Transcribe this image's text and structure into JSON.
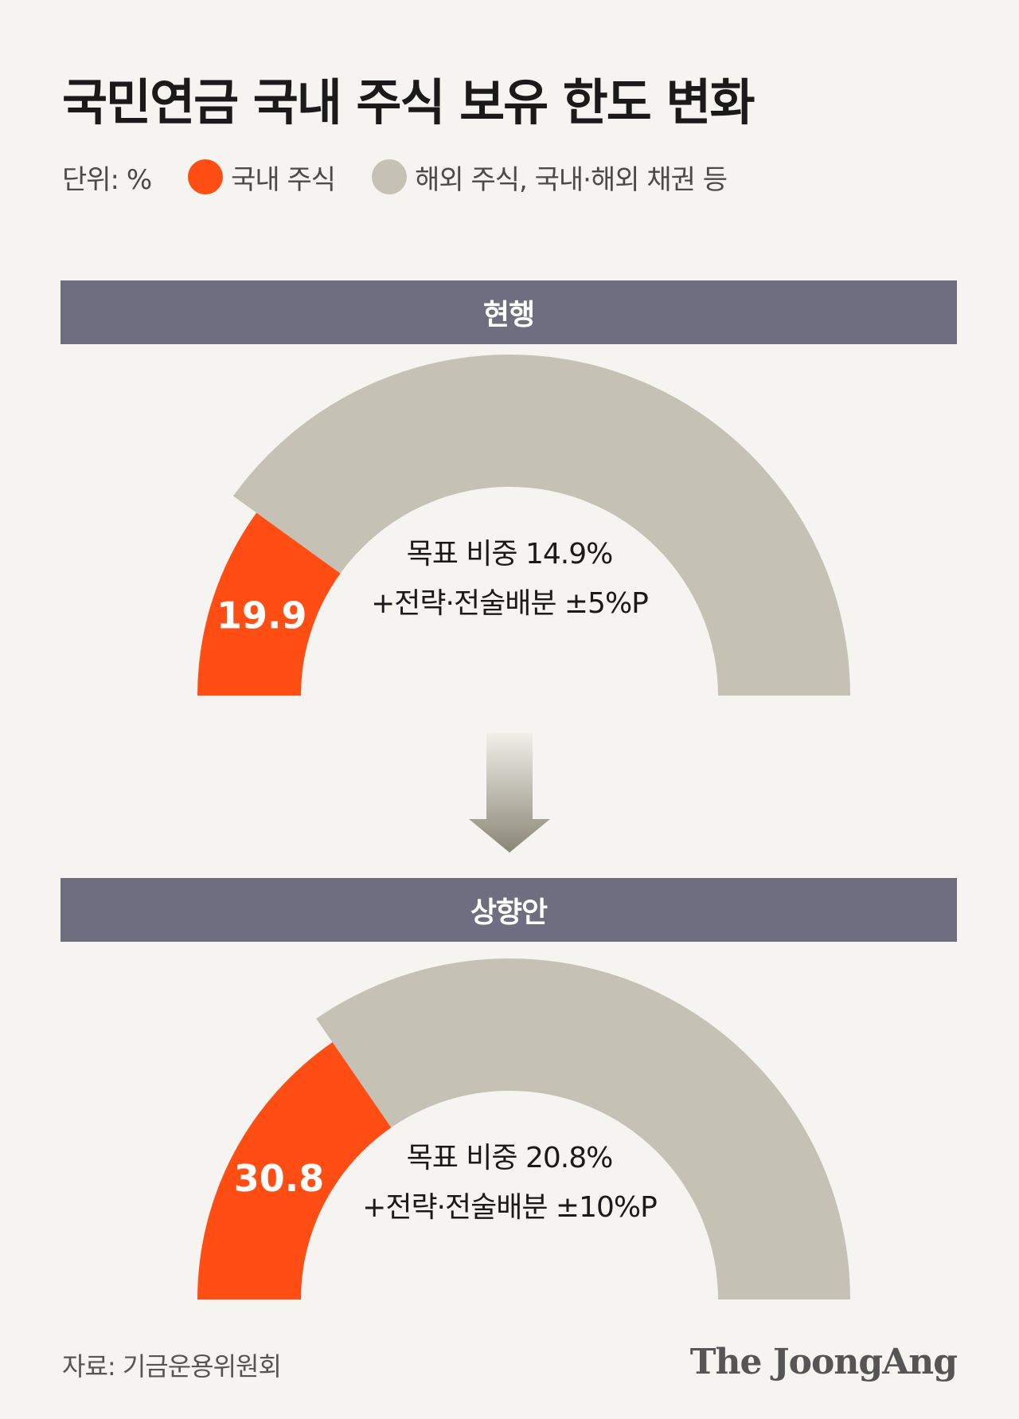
{
  "title": "국민연금 국내 주식 보유 한도 변화",
  "legend": {
    "unit": "단위: %",
    "items": [
      {
        "label": "국내 주식",
        "color": "#ff4d14"
      },
      {
        "label": "해외 주식, 국내·해외 채권 등",
        "color": "#c5c1b4"
      }
    ]
  },
  "colors": {
    "domestic": "#ff4d14",
    "other": "#c5c1b4",
    "inner": "#f5f4f0",
    "banner": "#6e6e80"
  },
  "chart_data": [
    {
      "type": "gauge",
      "title": "현행",
      "value": 19.9,
      "max": 100,
      "value_label": "19.9",
      "lines": [
        "목표 비중 14.9%",
        "+전략·전술배분 ±5%P"
      ]
    },
    {
      "type": "gauge",
      "title": "상향안",
      "value": 30.8,
      "max": 100,
      "value_label": "30.8",
      "lines": [
        "목표 비중 20.8%",
        "+전략·전술배분 ±10%P"
      ]
    }
  ],
  "arrow_icon": "down-arrow-icon",
  "source": "자료: 기금운용위원회",
  "logo": "The JoongAng"
}
